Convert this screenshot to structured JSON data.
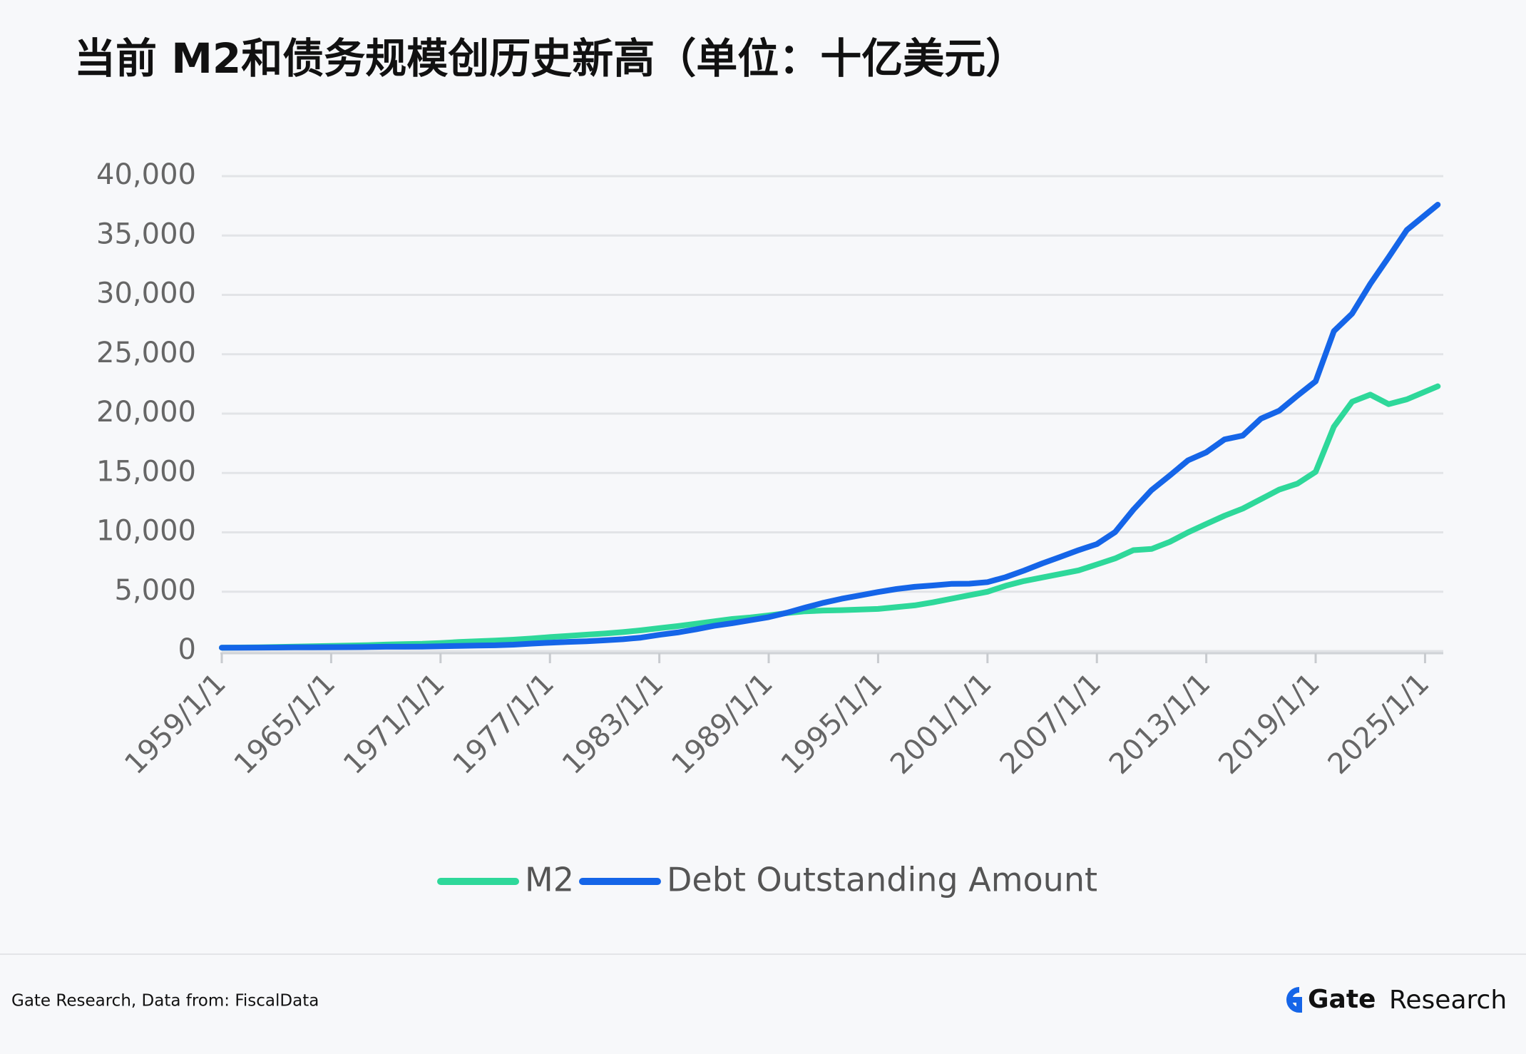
{
  "chart_data": {
    "type": "line",
    "title": "当前 M2和债务规模创历史新高（单位：十亿美元）",
    "x": [
      1959,
      1960,
      1961,
      1962,
      1963,
      1964,
      1965,
      1966,
      1967,
      1968,
      1969,
      1970,
      1971,
      1972,
      1973,
      1974,
      1975,
      1976,
      1977,
      1978,
      1979,
      1980,
      1981,
      1982,
      1983,
      1984,
      1985,
      1986,
      1987,
      1988,
      1989,
      1990,
      1991,
      1992,
      1993,
      1994,
      1995,
      1996,
      1997,
      1998,
      1999,
      2000,
      2001,
      2002,
      2003,
      2004,
      2005,
      2006,
      2007,
      2008,
      2009,
      2010,
      2011,
      2012,
      2013,
      2014,
      2015,
      2016,
      2017,
      2018,
      2019,
      2020,
      2021,
      2022,
      2023,
      2024,
      2025.7
    ],
    "series": [
      {
        "name": "M2",
        "color": "#2ed89a",
        "values": [
          287,
          300,
          320,
          345,
          375,
          405,
          440,
          465,
          500,
          545,
          580,
          610,
          680,
          760,
          830,
          880,
          960,
          1060,
          1180,
          1280,
          1380,
          1480,
          1600,
          1750,
          1930,
          2100,
          2300,
          2500,
          2700,
          2830,
          3000,
          3200,
          3350,
          3420,
          3450,
          3500,
          3550,
          3700,
          3850,
          4100,
          4400,
          4700,
          5000,
          5500,
          5900,
          6200,
          6500,
          6800,
          7300,
          7800,
          8500,
          8600,
          9200,
          10000,
          10700,
          11400,
          12000,
          12800,
          13600,
          14100,
          15100,
          18900,
          21000,
          21600,
          20800,
          21200,
          22300
        ]
      },
      {
        "name": "Debt Outstanding Amount",
        "color": "#1565e8",
        "values": [
          290,
          290,
          293,
          303,
          310,
          317,
          322,
          328,
          340,
          368,
          366,
          381,
          408,
          436,
          466,
          484,
          542,
          629,
          706,
          777,
          829,
          909,
          995,
          1137,
          1372,
          1565,
          1823,
          2125,
          2350,
          2602,
          2857,
          3233,
          3665,
          4065,
          4411,
          4693,
          4974,
          5225,
          5413,
          5526,
          5656,
          5674,
          5807,
          6228,
          6783,
          7379,
          7933,
          8507,
          9008,
          10025,
          11910,
          13562,
          14790,
          16066,
          16738,
          17824,
          18151,
          19573,
          20245,
          21516,
          22719,
          26945,
          28428,
          30929,
          33167,
          35465,
          37600
        ]
      }
    ],
    "xlim": [
      1959,
      2026
    ],
    "xticks": [
      {
        "value": 1959,
        "label": "1959/1/1"
      },
      {
        "value": 1965,
        "label": "1965/1/1"
      },
      {
        "value": 1971,
        "label": "1971/1/1"
      },
      {
        "value": 1977,
        "label": "1977/1/1"
      },
      {
        "value": 1983,
        "label": "1983/1/1"
      },
      {
        "value": 1989,
        "label": "1989/1/1"
      },
      {
        "value": 1995,
        "label": "1995/1/1"
      },
      {
        "value": 2001,
        "label": "2001/1/1"
      },
      {
        "value": 2007,
        "label": "2007/1/1"
      },
      {
        "value": 2013,
        "label": "2013/1/1"
      },
      {
        "value": 2019,
        "label": "2019/1/1"
      },
      {
        "value": 2025,
        "label": "2025/1/1"
      }
    ],
    "ylim": [
      0,
      40000
    ],
    "yticks": [
      0,
      {
        "value": 5000,
        "label": "5,000"
      },
      {
        "value": 10000,
        "label": "10,000"
      },
      {
        "value": 15000,
        "label": "15,000"
      },
      {
        "value": 20000,
        "label": "20,000"
      },
      {
        "value": 25000,
        "label": "25,000"
      },
      {
        "value": 30000,
        "label": "30,000"
      },
      {
        "value": 35000,
        "label": "35,000"
      },
      {
        "value": 40000,
        "label": "40,000"
      }
    ],
    "grid": true,
    "legend": "bottom"
  },
  "footer": {
    "source": "Gate Research, Data from: FiscalData",
    "brand": "Gate",
    "brand_suffix": "Research"
  }
}
